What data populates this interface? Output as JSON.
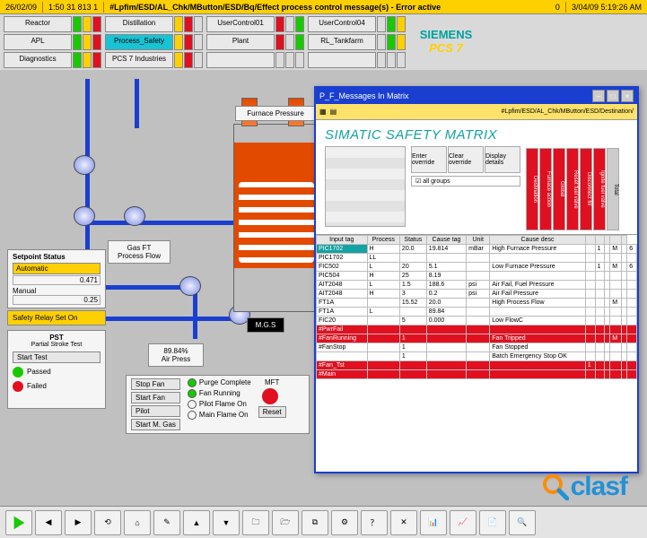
{
  "alarm": {
    "date": "26/02/09",
    "time": "1:50 31 813 1",
    "msg": "#Lpfim/ESD/AL_Chk/MButton/ESD/Bq/Effect process control message(s) - Error active",
    "status": "0",
    "clock": "3/04/09 5:19:26 AM"
  },
  "overview": {
    "rows": [
      [
        "Reactor",
        "Distillation",
        "UserControl01",
        "UserControl04"
      ],
      [
        "APL",
        "Process_Safety",
        "Plant",
        "RL_Tankfarm"
      ],
      [
        "Diagnostics",
        "PCS 7 Industries",
        "",
        ""
      ]
    ],
    "safety_color": "#18c3d4",
    "ind_ok": "#18c900",
    "ind_alert": "#ffd000",
    "ind_bad": "#e01020",
    "ind_none": "#dcdcdc"
  },
  "brand": {
    "name": "SIEMENS",
    "sub": "PCS 7",
    "color": "#00a0a0",
    "sub_color": "#ffd000"
  },
  "process": {
    "furnace_label": "Furnace Pressure",
    "setpoint_panel": {
      "title": "Setpoint Status",
      "tags": [
        "Automatic",
        "0.471",
        "Manual",
        "0.25"
      ]
    },
    "safety_relay": "Safety Relay Set On",
    "pst": {
      "title": "PST",
      "sub": "Partial Stroke Test",
      "btns": [
        "Start Test",
        "Passed",
        "Failed"
      ]
    },
    "air": {
      "label": "Air Press",
      "val": "89.84%"
    },
    "fan_panel": {
      "btns": [
        "Stop Fan",
        "Start Fan",
        "Pilot",
        "Start M. Gas"
      ],
      "radios": [
        "Purge Complete",
        "Fan Running",
        "Pilot Flame On",
        "Main Flame On"
      ],
      "mft": "MFT",
      "reset": "Reset"
    },
    "flow_label": "Gas FT\nProcess Flow",
    "mgas": "M.G.S"
  },
  "popup": {
    "title": "P_F_Messages In Matrix",
    "sub": "#Lpfim/ESD/AL_Chk/MButton/ESD/Destination/",
    "heading": "SIMATIC SAFETY MATRIX",
    "eff_btns": [
      "Enter override",
      "Clear override",
      "Display details"
    ],
    "eff_cols": [
      {
        "label": "Destination",
        "color": "#e01020"
      },
      {
        "label": "Furnace action",
        "color": "#e01020"
      },
      {
        "label": "Global",
        "color": "#e01020"
      },
      {
        "label": "Reset fuel valve",
        "color": "#e01020"
      },
      {
        "label": "Disconnect fill",
        "color": "#e01020"
      },
      {
        "label": "Ignite fuel valve",
        "color": "#e01020"
      },
      {
        "label": "Total",
        "color": "#cccccc"
      }
    ],
    "cause_headers": [
      "Input tag",
      "Process",
      "Status",
      "Cause tag",
      "Unit",
      "Cause desc",
      "",
      "",
      "",
      "",
      ""
    ],
    "causes": [
      {
        "tag": "PIC1702",
        "p": "H",
        "s": "20.0",
        "ct": "19.814",
        "u": "mBar",
        "d": "High Furnace Pressure",
        "color": "#14a2a2",
        "cells": [
          "",
          "1",
          "",
          "M",
          "",
          "6"
        ]
      },
      {
        "tag": "PIC1702",
        "p": "LL",
        "s": "",
        "ct": "",
        "u": "",
        "d": "",
        "color": "#ffffff",
        "cells": [
          "",
          "",
          "",
          "",
          "",
          ""
        ]
      },
      {
        "tag": "FIC502",
        "p": "L",
        "s": "20",
        "ct": "5.1",
        "u": "",
        "d": "Low Furnace Pressure",
        "color": "#ffffff",
        "cells": [
          "",
          "1",
          "",
          "M",
          "",
          "6"
        ]
      },
      {
        "tag": "PIC504",
        "p": "H",
        "s": "25",
        "ct": "8.19",
        "u": "",
        "d": "",
        "color": "#ffffff",
        "cells": [
          "",
          "",
          "",
          "",
          "",
          ""
        ]
      },
      {
        "tag": "AIT2048",
        "p": "L",
        "s": "1.5",
        "ct": "188.6",
        "u": "psi",
        "d": "Air Fail, Fuel Pressure",
        "color": "#ffffff",
        "cells": [
          "",
          "",
          "",
          "",
          "",
          ""
        ]
      },
      {
        "tag": "AIT2048",
        "p": "H",
        "s": "3",
        "ct": "0.2",
        "u": "psi",
        "d": "Air Fail Pressure",
        "color": "#ffffff",
        "cells": [
          "",
          "",
          "",
          "",
          "",
          ""
        ]
      },
      {
        "tag": "FT1A",
        "p": "",
        "s": "15.52",
        "ct": "20.0",
        "u": "",
        "d": "High Process Flow",
        "color": "#ffffff",
        "cells": [
          "",
          "",
          "",
          "M",
          "",
          ""
        ]
      },
      {
        "tag": "FT1A",
        "p": "L",
        "s": "",
        "ct": "89.84",
        "u": "",
        "d": "",
        "color": "#ffffff",
        "cells": [
          "",
          "",
          "",
          "",
          "",
          ""
        ]
      },
      {
        "tag": "FIC20",
        "p": "",
        "s": "5",
        "ct": "0.000",
        "u": "",
        "d": "Low FlowC",
        "color": "#ffffff",
        "cells": [
          "",
          "",
          "",
          "",
          "",
          ""
        ]
      },
      {
        "tag": "#PwrFail",
        "p": "",
        "s": "",
        "ct": "",
        "u": "",
        "d": "",
        "color": "#e01020",
        "cells": [
          "",
          "",
          "",
          "",
          "",
          ""
        ]
      },
      {
        "tag": "#FanRunning",
        "p": "",
        "s": "1",
        "ct": "",
        "u": "",
        "d": "Fan Tripped",
        "color": "#e01020",
        "cells": [
          "",
          "",
          "",
          "M",
          "",
          ""
        ]
      },
      {
        "tag": "#FanStop",
        "p": "",
        "s": "1",
        "ct": "",
        "u": "",
        "d": "Fan Stopped",
        "color": "#ffffff",
        "cells": [
          "",
          "",
          "",
          "",
          "",
          ""
        ]
      },
      {
        "tag": "",
        "p": "",
        "s": "1",
        "ct": "",
        "u": "",
        "d": "Batch Emergency Stop OK",
        "color": "#ffffff",
        "cells": [
          "",
          "",
          "",
          "",
          "",
          ""
        ]
      },
      {
        "tag": "#Fan_Tst",
        "p": "",
        "s": "",
        "ct": "",
        "u": "",
        "d": "",
        "color": "#e01020",
        "cells": [
          "1",
          "",
          "",
          "",
          "",
          ""
        ]
      },
      {
        "tag": "#Main",
        "p": "",
        "s": "",
        "ct": "",
        "u": "",
        "d": "",
        "color": "#e01020",
        "cells": [
          "",
          "",
          "",
          "",
          "",
          ""
        ]
      }
    ]
  },
  "toolbar": {
    "count": 18
  },
  "watermark": {
    "text": "clasf",
    "o_color": "#ff8a00",
    "rest_color": "#1a8fd8"
  }
}
